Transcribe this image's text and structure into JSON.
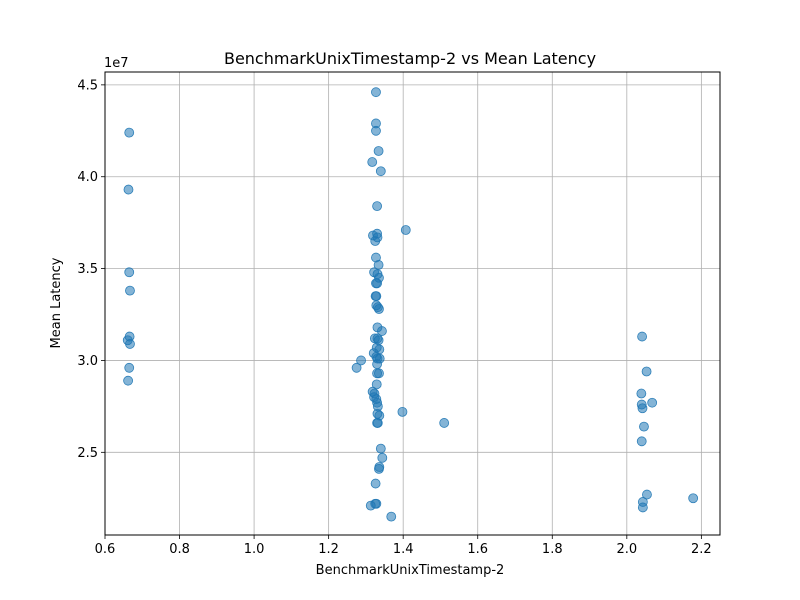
{
  "chart_data": {
    "type": "scatter",
    "title": "BenchmarkUnixTimestamp-2 vs Mean Latency",
    "xlabel": "BenchmarkUnixTimestamp-2",
    "ylabel": "Mean Latency",
    "y_offset_label": "1e7",
    "xlim": [
      0.6,
      2.25
    ],
    "ylim": [
      20500000.0,
      45700000.0
    ],
    "xticks": [
      0.6,
      0.8,
      1.0,
      1.2,
      1.4,
      1.6,
      1.8,
      2.0,
      2.2
    ],
    "xtick_labels": [
      "0.6",
      "0.8",
      "1.0",
      "1.2",
      "1.4",
      "1.6",
      "1.8",
      "2.0",
      "2.2"
    ],
    "yticks": [
      25000000.0,
      30000000.0,
      35000000.0,
      40000000.0,
      45000000.0
    ],
    "ytick_labels": [
      "2.5",
      "3.0",
      "3.5",
      "4.0",
      "4.5"
    ],
    "grid": true,
    "point_color": "#1f77b4",
    "point_alpha": 0.55,
    "points": [
      {
        "x": 0.665,
        "y": 42400000.0
      },
      {
        "x": 0.663,
        "y": 39300000.0
      },
      {
        "x": 0.665,
        "y": 34800000.0
      },
      {
        "x": 0.667,
        "y": 33800000.0
      },
      {
        "x": 0.666,
        "y": 31300000.0
      },
      {
        "x": 0.661,
        "y": 31100000.0
      },
      {
        "x": 0.667,
        "y": 30900000.0
      },
      {
        "x": 0.665,
        "y": 29600000.0
      },
      {
        "x": 0.662,
        "y": 28900000.0
      },
      {
        "x": 1.327,
        "y": 44600000.0
      },
      {
        "x": 1.327,
        "y": 42900000.0
      },
      {
        "x": 1.327,
        "y": 42500000.0
      },
      {
        "x": 1.334,
        "y": 41400000.0
      },
      {
        "x": 1.317,
        "y": 40800000.0
      },
      {
        "x": 1.34,
        "y": 40300000.0
      },
      {
        "x": 1.33,
        "y": 38400000.0
      },
      {
        "x": 1.33,
        "y": 36900000.0
      },
      {
        "x": 1.319,
        "y": 36800000.0
      },
      {
        "x": 1.331,
        "y": 36700000.0
      },
      {
        "x": 1.325,
        "y": 36500000.0
      },
      {
        "x": 1.407,
        "y": 37100000.0
      },
      {
        "x": 1.327,
        "y": 35600000.0
      },
      {
        "x": 1.334,
        "y": 35200000.0
      },
      {
        "x": 1.322,
        "y": 34800000.0
      },
      {
        "x": 1.331,
        "y": 34700000.0
      },
      {
        "x": 1.335,
        "y": 34500000.0
      },
      {
        "x": 1.327,
        "y": 34200000.0
      },
      {
        "x": 1.33,
        "y": 34200000.0
      },
      {
        "x": 1.326,
        "y": 33500000.0
      },
      {
        "x": 1.328,
        "y": 33500000.0
      },
      {
        "x": 1.328,
        "y": 33000000.0
      },
      {
        "x": 1.332,
        "y": 32900000.0
      },
      {
        "x": 1.335,
        "y": 32800000.0
      },
      {
        "x": 1.331,
        "y": 31800000.0
      },
      {
        "x": 1.343,
        "y": 31600000.0
      },
      {
        "x": 1.324,
        "y": 31200000.0
      },
      {
        "x": 1.331,
        "y": 31200000.0
      },
      {
        "x": 1.334,
        "y": 31100000.0
      },
      {
        "x": 1.329,
        "y": 30700000.0
      },
      {
        "x": 1.336,
        "y": 30600000.0
      },
      {
        "x": 1.321,
        "y": 30400000.0
      },
      {
        "x": 1.328,
        "y": 30200000.0
      },
      {
        "x": 1.331,
        "y": 30100000.0
      },
      {
        "x": 1.337,
        "y": 30100000.0
      },
      {
        "x": 1.287,
        "y": 30000000.0
      },
      {
        "x": 1.33,
        "y": 29800000.0
      },
      {
        "x": 1.275,
        "y": 29600000.0
      },
      {
        "x": 1.33,
        "y": 29300000.0
      },
      {
        "x": 1.335,
        "y": 29300000.0
      },
      {
        "x": 1.329,
        "y": 28700000.0
      },
      {
        "x": 1.318,
        "y": 28300000.0
      },
      {
        "x": 1.323,
        "y": 28200000.0
      },
      {
        "x": 1.322,
        "y": 28000000.0
      },
      {
        "x": 1.328,
        "y": 27900000.0
      },
      {
        "x": 1.33,
        "y": 27700000.0
      },
      {
        "x": 1.332,
        "y": 27500000.0
      },
      {
        "x": 1.331,
        "y": 27100000.0
      },
      {
        "x": 1.336,
        "y": 27000000.0
      },
      {
        "x": 1.398,
        "y": 27200000.0
      },
      {
        "x": 1.33,
        "y": 26600000.0
      },
      {
        "x": 1.332,
        "y": 26600000.0
      },
      {
        "x": 1.51,
        "y": 26600000.0
      },
      {
        "x": 1.34,
        "y": 25200000.0
      },
      {
        "x": 1.344,
        "y": 24700000.0
      },
      {
        "x": 1.336,
        "y": 24200000.0
      },
      {
        "x": 1.335,
        "y": 24100000.0
      },
      {
        "x": 1.326,
        "y": 23300000.0
      },
      {
        "x": 1.328,
        "y": 22200000.0
      },
      {
        "x": 1.325,
        "y": 22200000.0
      },
      {
        "x": 1.313,
        "y": 22100000.0
      },
      {
        "x": 1.368,
        "y": 21500000.0
      },
      {
        "x": 2.041,
        "y": 31300000.0
      },
      {
        "x": 2.053,
        "y": 29400000.0
      },
      {
        "x": 2.039,
        "y": 28200000.0
      },
      {
        "x": 2.04,
        "y": 27600000.0
      },
      {
        "x": 2.068,
        "y": 27700000.0
      },
      {
        "x": 2.042,
        "y": 27400000.0
      },
      {
        "x": 2.046,
        "y": 26400000.0
      },
      {
        "x": 2.04,
        "y": 25600000.0
      },
      {
        "x": 2.054,
        "y": 22700000.0
      },
      {
        "x": 2.043,
        "y": 22300000.0
      },
      {
        "x": 2.043,
        "y": 22000000.0
      },
      {
        "x": 2.178,
        "y": 22500000.0
      }
    ]
  }
}
